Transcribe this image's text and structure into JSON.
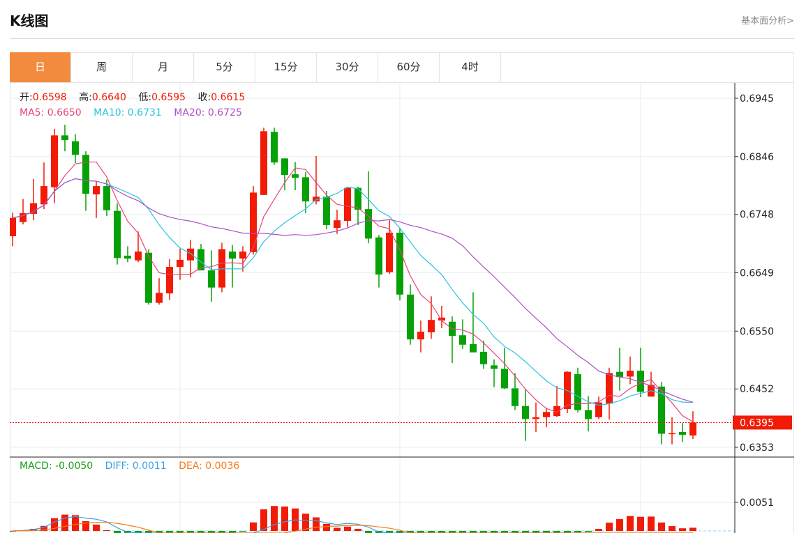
{
  "header": {
    "title": "K线图",
    "link": "基本面分析>"
  },
  "tabs": [
    {
      "label": "日",
      "active": true
    },
    {
      "label": "周"
    },
    {
      "label": "月"
    },
    {
      "label": "5分"
    },
    {
      "label": "15分"
    },
    {
      "label": "30分"
    },
    {
      "label": "60分"
    },
    {
      "label": "4时"
    }
  ],
  "ohlc_info": {
    "open_label": "开:",
    "open": "0.6598",
    "high_label": "高:",
    "high": "0.6640",
    "low_label": "低:",
    "low": "0.6595",
    "close_label": "收:",
    "close": "0.6615"
  },
  "ma_info": {
    "ma5": "MA5: 0.6650",
    "ma10": "MA10: 0.6731",
    "ma20": "MA20: 0.6725"
  },
  "macd_info": {
    "macd": "MACD: -0.0050",
    "diff": "DIFF: 0.0011",
    "dea": "DEA: 0.0036"
  },
  "colors": {
    "up": "#f21b06",
    "down": "#06a106",
    "ma5": "#e9457a",
    "ma10": "#2bc4dc",
    "ma20": "#ad4fc4",
    "diff": "#3ba0e6",
    "dea": "#f57a16",
    "active_tab": "#f38b3f"
  },
  "chart_data": [
    {
      "type": "candlestick",
      "ylim": [
        0.6353,
        0.6945
      ],
      "yticks": [
        "0.6945",
        "0.6846",
        "0.6748",
        "0.6649",
        "0.6550",
        "0.6452",
        "0.6353"
      ],
      "last_price": "0.6395",
      "moving_averages": [
        5,
        10,
        20
      ],
      "grid": true,
      "ohlc": [
        [
          0.6711,
          0.6751,
          0.6694,
          0.6742
        ],
        [
          0.6735,
          0.6774,
          0.6731,
          0.675
        ],
        [
          0.6749,
          0.6808,
          0.6738,
          0.6767
        ],
        [
          0.6765,
          0.6836,
          0.6757,
          0.6796
        ],
        [
          0.6794,
          0.6893,
          0.6767,
          0.6882
        ],
        [
          0.6882,
          0.69,
          0.6855,
          0.6874
        ],
        [
          0.6872,
          0.6884,
          0.6835,
          0.6849
        ],
        [
          0.6849,
          0.6855,
          0.6754,
          0.6783
        ],
        [
          0.6782,
          0.6804,
          0.6742,
          0.6796
        ],
        [
          0.6796,
          0.6807,
          0.6745,
          0.6755
        ],
        [
          0.6754,
          0.6767,
          0.6663,
          0.6674
        ],
        [
          0.6678,
          0.6694,
          0.6667,
          0.6673
        ],
        [
          0.667,
          0.6719,
          0.6667,
          0.6685
        ],
        [
          0.6683,
          0.6689,
          0.6595,
          0.6598
        ],
        [
          0.6598,
          0.664,
          0.6595,
          0.6615
        ],
        [
          0.6614,
          0.6672,
          0.6603,
          0.6659
        ],
        [
          0.6659,
          0.669,
          0.6637,
          0.6671
        ],
        [
          0.667,
          0.6705,
          0.6641,
          0.669
        ],
        [
          0.6689,
          0.6698,
          0.6653,
          0.6653
        ],
        [
          0.6653,
          0.6687,
          0.66,
          0.6624
        ],
        [
          0.6624,
          0.67,
          0.6616,
          0.6689
        ],
        [
          0.6685,
          0.6696,
          0.6624,
          0.6673
        ],
        [
          0.6673,
          0.6694,
          0.6651,
          0.6685
        ],
        [
          0.6684,
          0.6796,
          0.668,
          0.6785
        ],
        [
          0.6781,
          0.6895,
          0.6781,
          0.6889
        ],
        [
          0.6888,
          0.6895,
          0.6832,
          0.6836
        ],
        [
          0.6843,
          0.6843,
          0.6789,
          0.6815
        ],
        [
          0.6816,
          0.6837,
          0.6789,
          0.681
        ],
        [
          0.6811,
          0.682,
          0.675,
          0.677
        ],
        [
          0.677,
          0.6847,
          0.6765,
          0.6778
        ],
        [
          0.6778,
          0.6788,
          0.6723,
          0.673
        ],
        [
          0.6725,
          0.6756,
          0.6715,
          0.6738
        ],
        [
          0.6737,
          0.6795,
          0.6726,
          0.6793
        ],
        [
          0.6793,
          0.6795,
          0.673,
          0.6756
        ],
        [
          0.6757,
          0.6821,
          0.6699,
          0.6707
        ],
        [
          0.6709,
          0.6713,
          0.6624,
          0.6646
        ],
        [
          0.665,
          0.6739,
          0.6647,
          0.6717
        ],
        [
          0.6717,
          0.6724,
          0.6602,
          0.6612
        ],
        [
          0.6612,
          0.6629,
          0.6527,
          0.6536
        ],
        [
          0.6536,
          0.6568,
          0.6514,
          0.6549
        ],
        [
          0.6548,
          0.6609,
          0.6537,
          0.6569
        ],
        [
          0.6568,
          0.6593,
          0.6555,
          0.6573
        ],
        [
          0.6566,
          0.6575,
          0.6496,
          0.6542
        ],
        [
          0.6543,
          0.657,
          0.652,
          0.6527
        ],
        [
          0.6528,
          0.6616,
          0.6514,
          0.6514
        ],
        [
          0.6515,
          0.6534,
          0.6486,
          0.6494
        ],
        [
          0.6492,
          0.6502,
          0.6455,
          0.6486
        ],
        [
          0.6486,
          0.6522,
          0.6452,
          0.6453
        ],
        [
          0.6453,
          0.6479,
          0.6416,
          0.6423
        ],
        [
          0.6423,
          0.6451,
          0.6364,
          0.6401
        ],
        [
          0.6401,
          0.6429,
          0.6379,
          0.6404
        ],
        [
          0.6404,
          0.642,
          0.6387,
          0.6413
        ],
        [
          0.6406,
          0.6457,
          0.6404,
          0.6423
        ],
        [
          0.6418,
          0.6482,
          0.6411,
          0.6481
        ],
        [
          0.6477,
          0.6488,
          0.6412,
          0.6416
        ],
        [
          0.6416,
          0.644,
          0.638,
          0.6401
        ],
        [
          0.6404,
          0.6439,
          0.6401,
          0.6429
        ],
        [
          0.6427,
          0.6488,
          0.64,
          0.6479
        ],
        [
          0.6481,
          0.6522,
          0.6449,
          0.6472
        ],
        [
          0.6473,
          0.6507,
          0.646,
          0.6483
        ],
        [
          0.6483,
          0.6522,
          0.6438,
          0.6447
        ],
        [
          0.6439,
          0.6481,
          0.6439,
          0.6459
        ],
        [
          0.6456,
          0.6464,
          0.6358,
          0.6376
        ],
        [
          0.6376,
          0.6404,
          0.6358,
          0.6377
        ],
        [
          0.6379,
          0.6394,
          0.6362,
          0.6374
        ],
        [
          0.6373,
          0.6414,
          0.6367,
          0.6395
        ]
      ]
    },
    {
      "type": "macd",
      "yticks": [
        "0.0051"
      ],
      "params": [
        12,
        26,
        9
      ]
    }
  ]
}
